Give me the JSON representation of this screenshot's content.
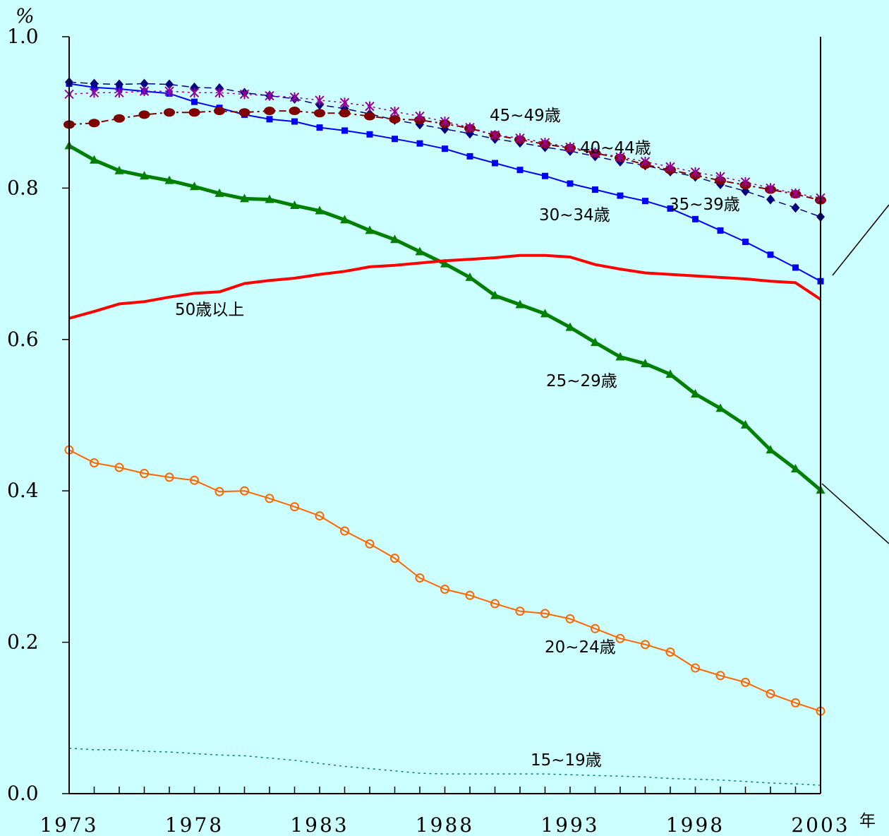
{
  "chart_data": {
    "type": "line",
    "y_unit": "%",
    "x_unit": "年",
    "ylim": [
      0.0,
      1.0
    ],
    "xlim": [
      1973,
      2003
    ],
    "y_ticks": [
      "0.0",
      "0.2",
      "0.4",
      "0.6",
      "0.8",
      "1.0"
    ],
    "x_ticks": [
      "1973",
      "1978",
      "1983",
      "1988",
      "1993",
      "1998",
      "2003"
    ],
    "grid": false,
    "legend": "none",
    "x": [
      1973,
      1974,
      1975,
      1976,
      1977,
      1978,
      1979,
      1980,
      1981,
      1982,
      1983,
      1984,
      1985,
      1986,
      1987,
      1988,
      1989,
      1990,
      1991,
      1992,
      1993,
      1994,
      1995,
      1996,
      1997,
      1998,
      1999,
      2000,
      2001,
      2002,
      2003
    ],
    "series": [
      {
        "name": "15~19歳",
        "color": "#008080",
        "style": "dotted",
        "marker": "none",
        "width": 1.5,
        "values": [
          0.06,
          0.058,
          0.058,
          0.056,
          0.055,
          0.053,
          0.051,
          0.05,
          0.047,
          0.044,
          0.04,
          0.036,
          0.033,
          0.03,
          0.027,
          0.026,
          0.026,
          0.026,
          0.026,
          0.026,
          0.025,
          0.024,
          0.023,
          0.022,
          0.02,
          0.019,
          0.018,
          0.016,
          0.014,
          0.013,
          0.011
        ]
      },
      {
        "name": "20~24歳",
        "color": "#ff6600",
        "style": "solid",
        "marker": "circle",
        "width": 2,
        "values": [
          0.454,
          0.437,
          0.431,
          0.423,
          0.418,
          0.414,
          0.399,
          0.4,
          0.39,
          0.379,
          0.367,
          0.347,
          0.33,
          0.311,
          0.285,
          0.27,
          0.262,
          0.251,
          0.241,
          0.238,
          0.231,
          0.218,
          0.205,
          0.197,
          0.187,
          0.166,
          0.156,
          0.147,
          0.132,
          0.12,
          0.109
        ]
      },
      {
        "name": "25~29歳",
        "color": "#008000",
        "style": "solid",
        "marker": "triangle",
        "width": 5,
        "values": [
          0.856,
          0.837,
          0.823,
          0.816,
          0.81,
          0.802,
          0.793,
          0.786,
          0.785,
          0.777,
          0.77,
          0.758,
          0.744,
          0.732,
          0.716,
          0.7,
          0.682,
          0.658,
          0.646,
          0.634,
          0.616,
          0.596,
          0.577,
          0.568,
          0.554,
          0.528,
          0.509,
          0.487,
          0.454,
          0.429,
          0.401
        ]
      },
      {
        "name": "30~34歳",
        "color": "#0000ff",
        "style": "solid",
        "marker": "square",
        "width": 2,
        "values": [
          0.938,
          0.933,
          0.931,
          0.928,
          0.925,
          0.914,
          0.906,
          0.897,
          0.891,
          0.888,
          0.88,
          0.876,
          0.871,
          0.865,
          0.859,
          0.852,
          0.842,
          0.833,
          0.824,
          0.816,
          0.806,
          0.798,
          0.79,
          0.783,
          0.773,
          0.759,
          0.744,
          0.729,
          0.712,
          0.695,
          0.677
        ]
      },
      {
        "name": "35~39歳",
        "color": "#000080",
        "style": "dashed",
        "marker": "diamond",
        "width": 1.5,
        "values": [
          0.94,
          0.938,
          0.937,
          0.938,
          0.937,
          0.933,
          0.932,
          0.926,
          0.922,
          0.918,
          0.91,
          0.905,
          0.898,
          0.89,
          0.884,
          0.878,
          0.872,
          0.865,
          0.86,
          0.854,
          0.849,
          0.842,
          0.835,
          0.83,
          0.822,
          0.815,
          0.805,
          0.796,
          0.785,
          0.774,
          0.762
        ]
      },
      {
        "name": "40~44歳",
        "color": "#800000",
        "style": "dashdot",
        "marker": "dot",
        "width": 2,
        "values": [
          0.884,
          0.886,
          0.892,
          0.897,
          0.9,
          0.9,
          0.902,
          0.9,
          0.902,
          0.902,
          0.899,
          0.899,
          0.895,
          0.891,
          0.89,
          0.885,
          0.879,
          0.87,
          0.864,
          0.858,
          0.853,
          0.846,
          0.84,
          0.831,
          0.824,
          0.817,
          0.81,
          0.804,
          0.798,
          0.792,
          0.784
        ]
      },
      {
        "name": "45~49歳",
        "color": "#990099",
        "style": "dotted",
        "marker": "star",
        "width": 1.5,
        "values": [
          0.924,
          0.926,
          0.926,
          0.928,
          0.928,
          0.926,
          0.926,
          0.924,
          0.922,
          0.92,
          0.916,
          0.913,
          0.908,
          0.901,
          0.895,
          0.888,
          0.88,
          0.87,
          0.866,
          0.86,
          0.854,
          0.847,
          0.841,
          0.835,
          0.828,
          0.821,
          0.815,
          0.808,
          0.8,
          0.793,
          0.787
        ]
      },
      {
        "name": "50歳以上",
        "color": "#ff0000",
        "style": "solid",
        "marker": "none",
        "width": 4,
        "values": [
          0.628,
          0.637,
          0.647,
          0.65,
          0.656,
          0.661,
          0.663,
          0.674,
          0.678,
          0.681,
          0.686,
          0.69,
          0.696,
          0.698,
          0.701,
          0.704,
          0.706,
          0.708,
          0.711,
          0.711,
          0.709,
          0.699,
          0.693,
          0.688,
          0.686,
          0.684,
          0.682,
          0.68,
          0.677,
          0.675,
          0.653
        ]
      }
    ]
  }
}
